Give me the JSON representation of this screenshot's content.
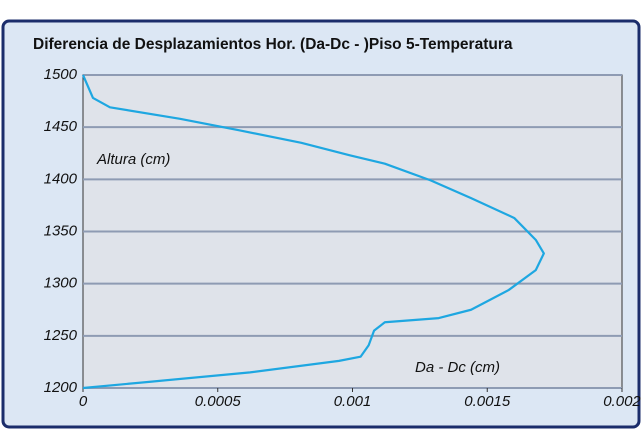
{
  "chart_data": {
    "type": "line",
    "title": "Diferencia de Desplazamientos Hor. (Da-Dc - )Piso 5-Temperatura",
    "xlabel": "Da - Dc (cm)",
    "ylabel": "Altura (cm)",
    "series": [
      {
        "name": "Da-Dc",
        "color": "#1ea7e1",
        "x": [
          0,
          3.7e-05,
          0.0001,
          0.00036,
          0.00058,
          0.00081,
          0.00099,
          0.00112,
          0.00129,
          0.00144,
          0.0016,
          0.00168,
          0.00171,
          0.00168,
          0.00158,
          0.00144,
          0.00132,
          0.00112,
          0.00108,
          0.00106,
          0.00103,
          0.00095,
          0.00062,
          0.00025,
          0
        ],
        "values": [
          1500,
          1478,
          1469,
          1458,
          1447,
          1435,
          1423,
          1415,
          1399,
          1382,
          1363,
          1342,
          1329,
          1313,
          1294,
          1275,
          1267,
          1263,
          1255,
          1241,
          1230,
          1226,
          1215,
          1206,
          1200
        ]
      }
    ],
    "xlim": [
      0,
      0.002
    ],
    "xticks": [
      0,
      0.0005,
      0.001,
      0.0015,
      0.002
    ],
    "ylim": [
      1200,
      1500
    ],
    "yticks": [
      1200,
      1250,
      1300,
      1350,
      1400,
      1450,
      1500
    ],
    "grid": true
  }
}
